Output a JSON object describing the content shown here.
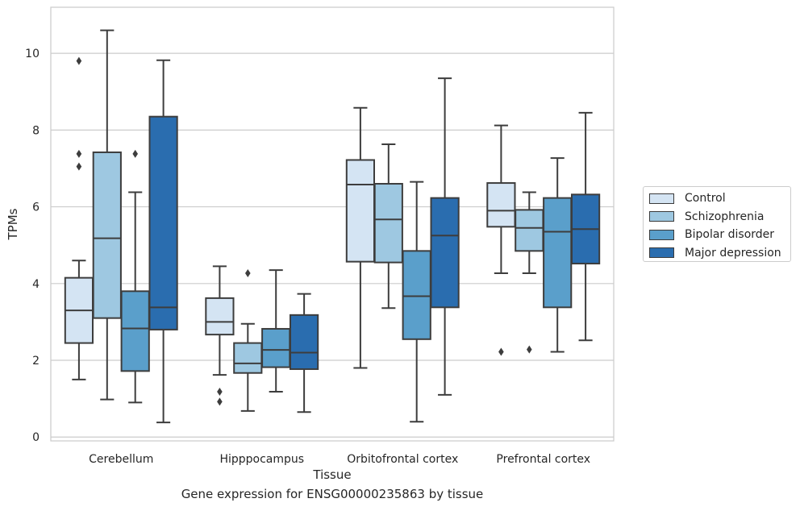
{
  "caption": "Gene expression for ENSG00000235863 by tissue",
  "chart_data": {
    "type": "box",
    "xlabel": "Tissue",
    "ylabel": "TPMs",
    "ylim": [
      -0.1,
      11.2
    ],
    "yticks": [
      0,
      2,
      4,
      6,
      8,
      10
    ],
    "grid": "horizontal",
    "legend_position": "right",
    "categories": [
      "Cerebellum",
      "Hipppocampus",
      "Orbitofrontal cortex",
      "Prefrontal cortex"
    ],
    "series": [
      {
        "name": "Control",
        "color": "#d4e4f3",
        "boxes": [
          {
            "q1": 2.45,
            "median": 3.3,
            "q3": 4.15,
            "whislo": 1.5,
            "whishi": 4.6,
            "fliers": [
              9.8,
              7.38,
              7.05
            ]
          },
          {
            "q1": 2.67,
            "median": 3.0,
            "q3": 3.62,
            "whislo": 1.62,
            "whishi": 4.45,
            "fliers": [
              1.18,
              0.92
            ]
          },
          {
            "q1": 4.57,
            "median": 6.58,
            "q3": 7.22,
            "whislo": 1.8,
            "whishi": 8.58,
            "fliers": []
          },
          {
            "q1": 5.48,
            "median": 5.9,
            "q3": 6.62,
            "whislo": 4.27,
            "whishi": 8.12,
            "fliers": [
              2.22
            ]
          }
        ]
      },
      {
        "name": "Schizophrenia",
        "color": "#9ec8e1",
        "boxes": [
          {
            "q1": 3.1,
            "median": 5.18,
            "q3": 7.42,
            "whislo": 0.98,
            "whishi": 10.6,
            "fliers": []
          },
          {
            "q1": 1.67,
            "median": 1.92,
            "q3": 2.45,
            "whislo": 0.68,
            "whishi": 2.95,
            "fliers": [
              4.27
            ]
          },
          {
            "q1": 4.55,
            "median": 5.67,
            "q3": 6.6,
            "whislo": 3.36,
            "whishi": 7.63,
            "fliers": []
          },
          {
            "q1": 4.85,
            "median": 5.45,
            "q3": 5.92,
            "whislo": 4.27,
            "whishi": 6.38,
            "fliers": [
              2.28
            ]
          }
        ]
      },
      {
        "name": "Bipolar disorder",
        "color": "#5a9fcb",
        "boxes": [
          {
            "q1": 1.72,
            "median": 2.83,
            "q3": 3.8,
            "whislo": 0.9,
            "whishi": 6.38,
            "fliers": [
              7.38
            ]
          },
          {
            "q1": 1.82,
            "median": 2.27,
            "q3": 2.82,
            "whislo": 1.18,
            "whishi": 4.35,
            "fliers": []
          },
          {
            "q1": 2.55,
            "median": 3.67,
            "q3": 4.85,
            "whislo": 0.4,
            "whishi": 6.65,
            "fliers": []
          },
          {
            "q1": 3.38,
            "median": 5.35,
            "q3": 6.23,
            "whislo": 2.22,
            "whishi": 7.27,
            "fliers": []
          }
        ]
      },
      {
        "name": "Major depression",
        "color": "#2a6daf",
        "boxes": [
          {
            "q1": 2.8,
            "median": 3.38,
            "q3": 8.35,
            "whislo": 0.38,
            "whishi": 9.82,
            "fliers": []
          },
          {
            "q1": 1.77,
            "median": 2.2,
            "q3": 3.18,
            "whislo": 0.65,
            "whishi": 3.73,
            "fliers": []
          },
          {
            "q1": 3.38,
            "median": 5.25,
            "q3": 6.23,
            "whislo": 1.1,
            "whishi": 9.35,
            "fliers": []
          },
          {
            "q1": 4.52,
            "median": 5.42,
            "q3": 6.32,
            "whislo": 2.52,
            "whishi": 8.45,
            "fliers": []
          }
        ]
      }
    ]
  }
}
